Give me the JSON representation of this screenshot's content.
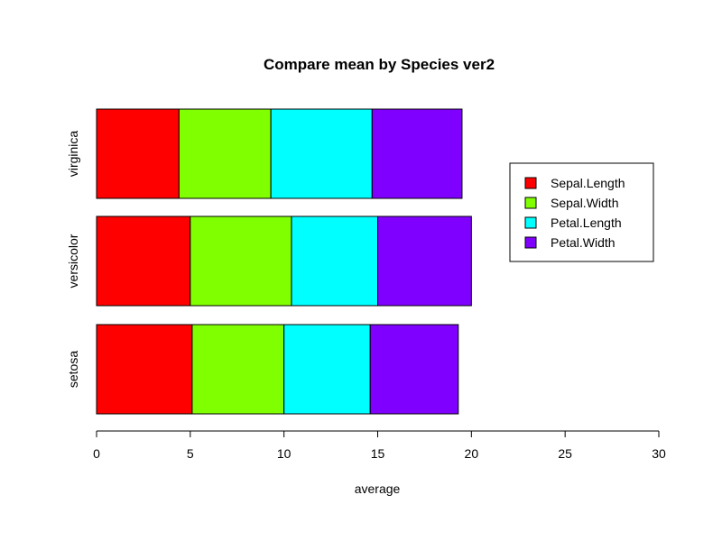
{
  "chart_data": {
    "type": "bar",
    "orientation": "horizontal",
    "stacked": true,
    "title": "Compare mean by Species ver2",
    "xlabel": "average",
    "ylabel": "",
    "xlim": [
      0,
      30
    ],
    "x_ticks": [
      0,
      5,
      10,
      15,
      20,
      25,
      30
    ],
    "categories": [
      "setosa",
      "versicolor",
      "virginica"
    ],
    "series": [
      {
        "name": "Sepal.Length",
        "color": "#ff0000",
        "values": [
          5.1,
          5.0,
          4.4
        ]
      },
      {
        "name": "Sepal.Width",
        "color": "#80ff00",
        "values": [
          4.9,
          5.4,
          4.9
        ]
      },
      {
        "name": "Petal.Length",
        "color": "#00ffff",
        "values": [
          4.6,
          4.6,
          5.4
        ]
      },
      {
        "name": "Petal.Width",
        "color": "#8000ff",
        "values": [
          4.7,
          5.0,
          4.8
        ]
      }
    ],
    "legend_position": "right",
    "grid": false
  }
}
